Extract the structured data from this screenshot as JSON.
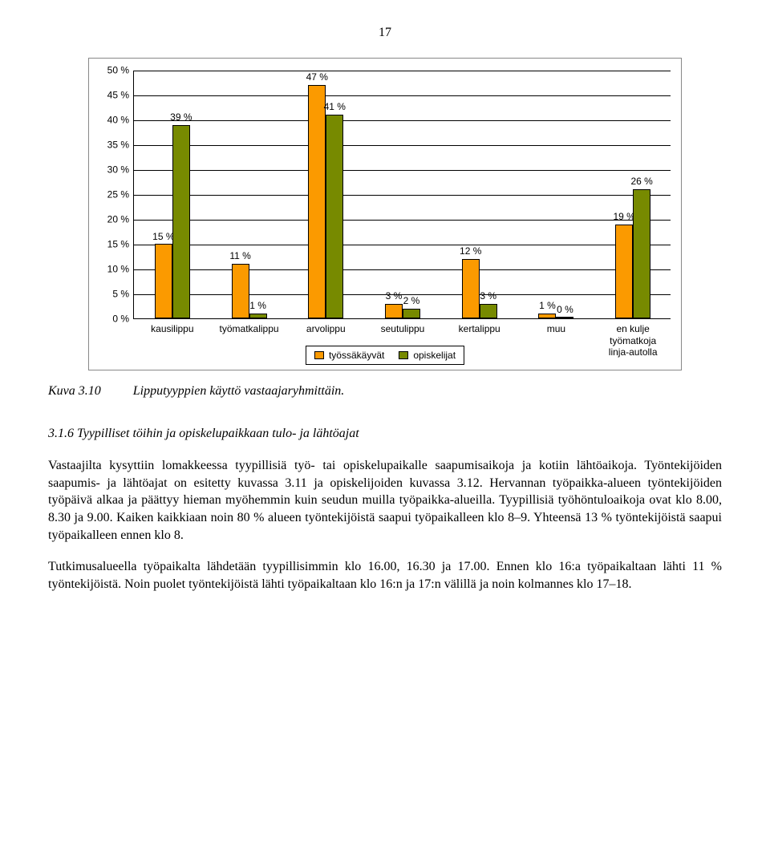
{
  "page_number": "17",
  "chart": {
    "type": "bar",
    "y_min": 0,
    "y_max": 50,
    "y_step": 5,
    "y_tick_suffix": " %",
    "bar_colors": [
      "#fb9a00",
      "#778a00"
    ],
    "gridline_color": "#000000",
    "categories": [
      {
        "label": "kausilippu",
        "values": [
          15,
          39
        ],
        "labels": [
          "15 %",
          "39 %"
        ]
      },
      {
        "label": "työmatkalippu",
        "values": [
          11,
          1
        ],
        "labels": [
          "11 %",
          "1 %"
        ]
      },
      {
        "label": "arvolippu",
        "values": [
          47,
          41
        ],
        "labels": [
          "47 %",
          "41 %"
        ]
      },
      {
        "label": "seutulippu",
        "values": [
          3,
          2
        ],
        "labels": [
          "3 %",
          "2 %"
        ]
      },
      {
        "label": "kertalippu",
        "values": [
          12,
          3
        ],
        "labels": [
          "12 %",
          "3 %"
        ]
      },
      {
        "label": "muu",
        "values": [
          1,
          0
        ],
        "labels": [
          "1 %",
          "0 %"
        ]
      },
      {
        "label": "en kulje työmatkoja\nlinja-autolla",
        "values": [
          19,
          26
        ],
        "labels": [
          "19 %",
          "26 %"
        ]
      }
    ],
    "legend": [
      "työssäkäyvät",
      "opiskelijat"
    ]
  },
  "caption": {
    "figure": "Kuva 3.10",
    "text": "Lipputyyppien käyttö vastaajaryhmittäin."
  },
  "section_heading": "3.1.6  Tyypilliset töihin ja opiskelupaikkaan tulo- ja lähtöajat",
  "paragraphs": [
    "Vastaajilta kysyttiin lomakkeessa tyypillisiä työ- tai opiskelupaikalle saapumisaikoja ja kotiin lähtöaikoja. Työntekijöiden saapumis- ja lähtöajat on esitetty kuvassa 3.11 ja opiskelijoiden kuvassa 3.12. Hervannan työpaikka-alueen työntekijöiden työpäivä alkaa ja päättyy hieman myöhemmin kuin seudun muilla työpaikka-alueilla. Tyypillisiä työhöntuloaikoja ovat klo 8.00, 8.30 ja 9.00. Kaiken kaikkiaan noin 80 % alueen työntekijöistä saapui työpaikalleen klo 8–9. Yhteensä 13 % työntekijöistä saapui työpaikalleen ennen klo 8.",
    "Tutkimusalueella työpaikalta lähdetään tyypillisimmin klo 16.00, 16.30 ja 17.00. Ennen klo 16:a työpaikaltaan lähti 11 % työntekijöistä. Noin puolet työntekijöistä lähti työpaikaltaan klo 16:n ja 17:n välillä ja noin kolmannes klo 17–18."
  ]
}
